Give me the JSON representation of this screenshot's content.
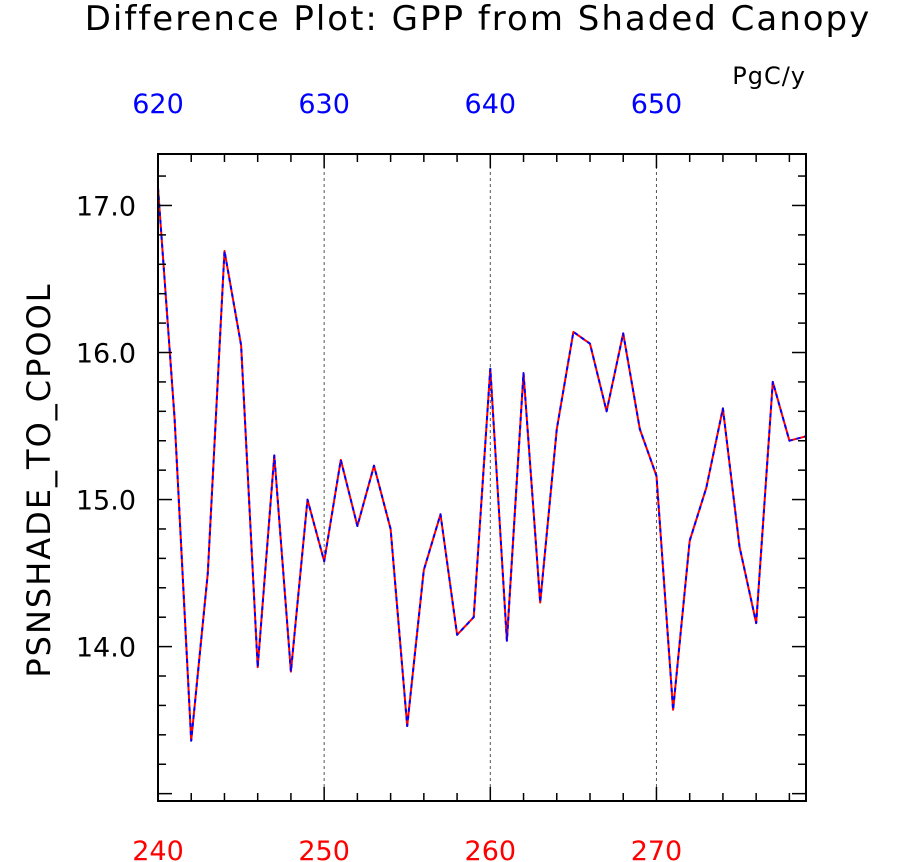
{
  "chart_data": {
    "type": "line",
    "title": "Difference Plot: GPP from Shaded Canopy",
    "units": "PgC/y",
    "ylabel": "PSNSHADE_TO_CPOOL",
    "xlabel": "",
    "xlim": [
      240,
      279
    ],
    "ylim": [
      12.95,
      17.35
    ],
    "grid": "dashed vertical lines at major x ticks",
    "bottom_axis": {
      "color": "#ff0000",
      "ticks": [
        240,
        250,
        260,
        270
      ],
      "tick_labels": [
        "240",
        "250",
        "260",
        "270"
      ]
    },
    "top_axis": {
      "color": "#0000ff",
      "ticks": [
        620,
        630,
        640,
        650
      ],
      "tick_labels": [
        "620",
        "630",
        "640",
        "650"
      ],
      "offset_from_bottom": 380
    },
    "yticks": [
      14.0,
      15.0,
      16.0,
      17.0
    ],
    "ytick_labels": [
      "14.0",
      "15.0",
      "16.0",
      "17.0"
    ],
    "series": [
      {
        "color": "#ff0000",
        "style": "solid",
        "x": [
          240,
          241,
          242,
          243,
          244,
          245,
          246,
          247,
          248,
          249,
          250,
          251,
          252,
          253,
          254,
          255,
          256,
          257,
          258,
          259,
          260,
          261,
          262,
          263,
          264,
          265,
          266,
          267,
          268,
          269,
          270,
          271,
          272,
          273,
          274,
          275,
          276,
          277,
          278,
          279
        ],
        "values": [
          17.12,
          15.55,
          13.36,
          14.5,
          16.69,
          16.05,
          13.86,
          15.3,
          13.83,
          15.0,
          14.58,
          15.27,
          14.82,
          15.23,
          14.8,
          13.46,
          14.52,
          14.9,
          14.08,
          14.2,
          15.89,
          14.04,
          15.86,
          14.3,
          15.48,
          16.14,
          16.06,
          15.6,
          16.13,
          15.48,
          15.16,
          13.57,
          14.72,
          15.08,
          15.62,
          14.68,
          14.16,
          15.8,
          15.4,
          15.43
        ]
      },
      {
        "color": "#0000ff",
        "style": "dashed",
        "x": [
          240,
          241,
          242,
          243,
          244,
          245,
          246,
          247,
          248,
          249,
          250,
          251,
          252,
          253,
          254,
          255,
          256,
          257,
          258,
          259,
          260,
          261,
          262,
          263,
          264,
          265,
          266,
          267,
          268,
          269,
          270,
          271,
          272,
          273,
          274,
          275,
          276,
          277,
          278,
          279
        ],
        "values": [
          17.12,
          15.55,
          13.36,
          14.5,
          16.69,
          16.05,
          13.86,
          15.3,
          13.83,
          15.0,
          14.58,
          15.27,
          14.82,
          15.23,
          14.8,
          13.46,
          14.52,
          14.9,
          14.08,
          14.2,
          15.89,
          14.04,
          15.86,
          14.3,
          15.48,
          16.14,
          16.06,
          15.6,
          16.13,
          15.48,
          15.16,
          13.57,
          14.72,
          15.08,
          15.62,
          14.68,
          14.16,
          15.8,
          15.4,
          15.43
        ]
      }
    ]
  }
}
